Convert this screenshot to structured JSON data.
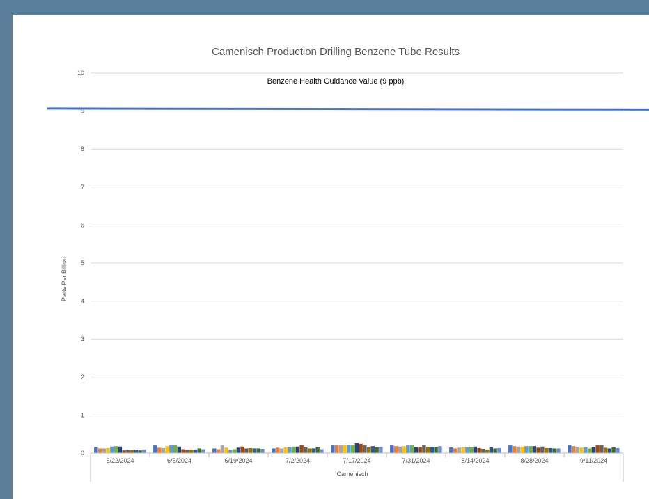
{
  "chart_data": {
    "type": "bar",
    "title": "Camenisch Production Drilling Benzene Tube Results",
    "ylabel": "Parts Per Billion",
    "xlabel": "Camenisch",
    "ylim": [
      0,
      10
    ],
    "yticks": [
      0,
      1,
      2,
      3,
      4,
      5,
      6,
      7,
      8,
      9,
      10
    ],
    "grid": true,
    "categories": [
      "5/22/2024",
      "6/5/2024",
      "6/19/2024",
      "7/2/2024",
      "7/17/2024",
      "7/31/2024",
      "8/14/2024",
      "8/28/2024",
      "9/11/2024"
    ],
    "bar_colors": [
      "#4472c4",
      "#ed7d31",
      "#a5a5a5",
      "#ffc000",
      "#5b9bd5",
      "#70ad47",
      "#264478",
      "#9e480e",
      "#636363",
      "#997300",
      "#255e91",
      "#43682b",
      "#698ed0"
    ],
    "groups": [
      [
        0.15,
        0.12,
        0.12,
        0.13,
        0.17,
        0.18,
        0.17,
        0.07,
        0.08,
        0.08,
        0.09,
        0.07,
        0.09
      ],
      [
        0.2,
        0.14,
        0.13,
        0.18,
        0.2,
        0.2,
        0.17,
        0.1,
        0.09,
        0.09,
        0.09,
        0.12,
        0.1
      ],
      [
        0.12,
        0.1,
        0.2,
        0.14,
        0.08,
        0.1,
        0.14,
        0.17,
        0.12,
        0.13,
        0.12,
        0.12,
        0.11
      ],
      [
        0.12,
        0.14,
        0.12,
        0.15,
        0.16,
        0.17,
        0.17,
        0.2,
        0.15,
        0.12,
        0.12,
        0.15,
        0.1
      ],
      [
        0.2,
        0.2,
        0.2,
        0.22,
        0.22,
        0.2,
        0.26,
        0.24,
        0.2,
        0.15,
        0.18,
        0.15,
        0.16
      ],
      [
        0.2,
        0.18,
        0.17,
        0.18,
        0.2,
        0.2,
        0.16,
        0.16,
        0.2,
        0.16,
        0.16,
        0.16,
        0.18
      ],
      [
        0.15,
        0.12,
        0.14,
        0.15,
        0.15,
        0.16,
        0.17,
        0.13,
        0.11,
        0.09,
        0.15,
        0.12,
        0.13
      ],
      [
        0.2,
        0.18,
        0.17,
        0.17,
        0.18,
        0.18,
        0.18,
        0.14,
        0.17,
        0.13,
        0.13,
        0.12,
        0.12
      ],
      [
        0.2,
        0.18,
        0.15,
        0.14,
        0.15,
        0.12,
        0.15,
        0.2,
        0.2,
        0.14,
        0.12,
        0.15,
        0.13
      ]
    ],
    "reference_line": {
      "value": 9.05,
      "label": "Benzene Health Guidance Value (9 ppb)",
      "color": "#4472c4"
    }
  }
}
